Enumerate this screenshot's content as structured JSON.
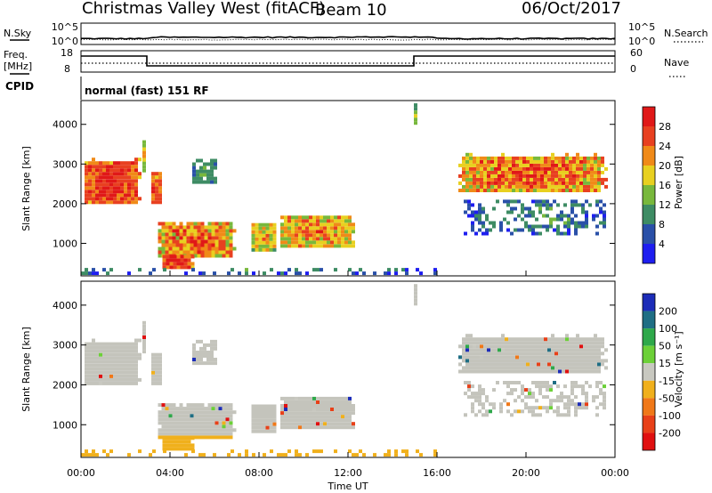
{
  "header": {
    "title": "Christmas Valley West (fitACF)",
    "beam": "Beam 10",
    "date": "06/Oct/2017"
  },
  "status_panel": {
    "nsky_label": "N.Sky",
    "nsearch_label": "N.Search",
    "freq_label_top": "Freq.",
    "freq_label_unit": "[MHz]",
    "nave_label": "Nave",
    "cpid_label": "CPID",
    "mode_text": "normal (fast) 151 RF",
    "noise_left_ticks": [
      "10^5",
      "10^0"
    ],
    "noise_right_ticks": [
      "10^5",
      "10^0"
    ],
    "freq_ticks": [
      "18",
      "8"
    ],
    "nave_ticks": [
      "60",
      "0"
    ]
  },
  "chart_data": [
    {
      "type": "heatmap",
      "name": "power",
      "xlabel": "",
      "ylabel": "Slant Range [km]",
      "xlim": [
        0,
        24
      ],
      "ylim": [
        180,
        4600
      ],
      "y_ticks": [
        1000,
        2000,
        3000,
        4000
      ],
      "colorbar": {
        "label": "Power [dB]",
        "ticks": [
          "4",
          "8",
          "12",
          "16",
          "20",
          "24",
          "28"
        ],
        "colors": [
          "#1e1ef0",
          "#2a50a8",
          "#3e8c64",
          "#78b83c",
          "#e8d020",
          "#f08a18",
          "#e84020",
          "#e01818"
        ],
        "range": [
          0,
          32
        ]
      }
    },
    {
      "type": "heatmap",
      "name": "velocity",
      "xlabel": "Time UT",
      "ylabel": "Slant Range [km]",
      "xlim": [
        0,
        24
      ],
      "ylim": [
        180,
        4600
      ],
      "x_ticks": [
        "00:00",
        "04:00",
        "08:00",
        "12:00",
        "16:00",
        "20:00",
        "00:00"
      ],
      "y_ticks": [
        1000,
        2000,
        3000,
        4000
      ],
      "colorbar": {
        "label": "Velocity [m s⁻¹]",
        "ticks": [
          "200",
          "100",
          "50",
          "15",
          "-15",
          "-50",
          "-100",
          "-200"
        ],
        "colors": [
          "#1c2cb8",
          "#1f6e84",
          "#2ea84a",
          "#6cd038",
          "#c8c8c0",
          "#f0b01c",
          "#f07818",
          "#e84018",
          "#e01010"
        ]
      }
    }
  ],
  "colors": {
    "ground_scatter": "#c4c4bc",
    "axis": "#000000"
  }
}
